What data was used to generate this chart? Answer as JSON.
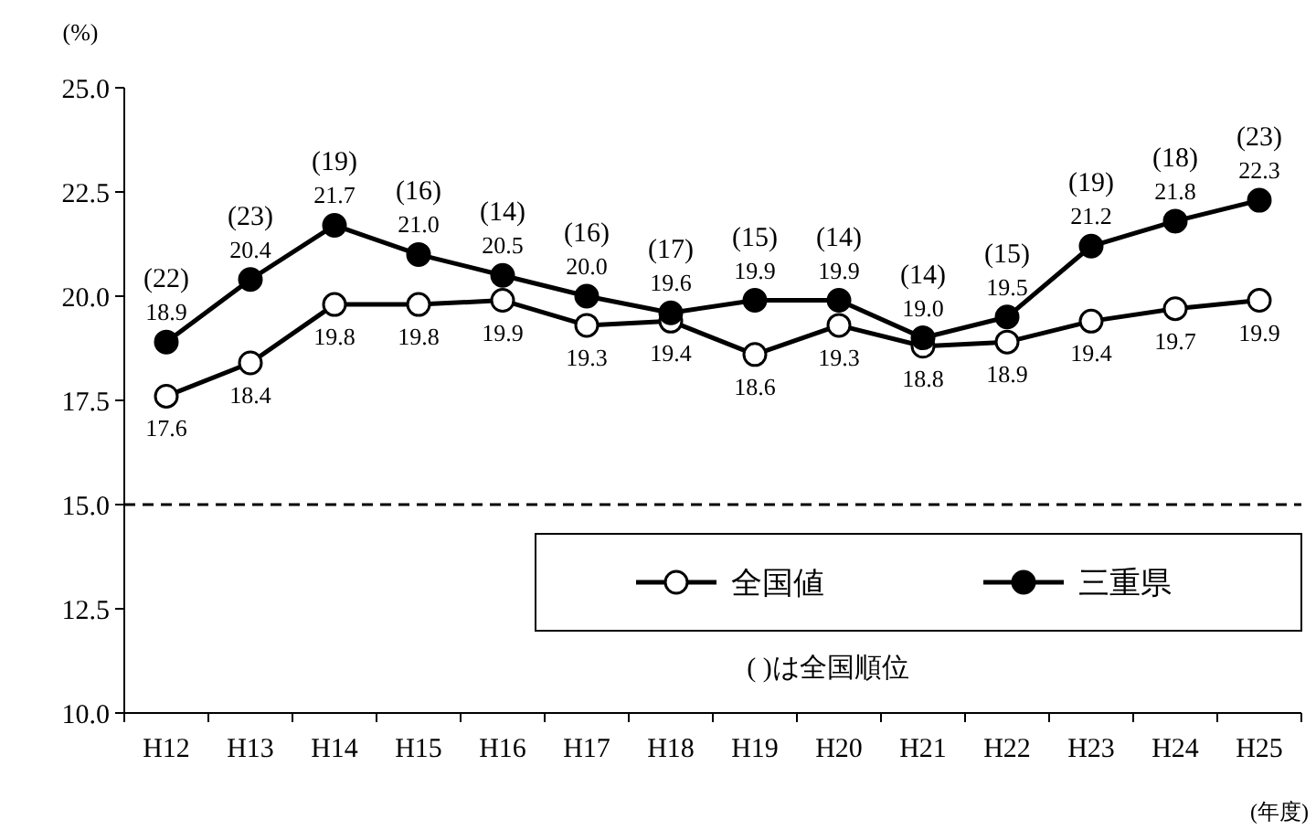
{
  "chart_data": {
    "type": "line",
    "ylabel": "(%)",
    "xlabel": "(年度)",
    "categories": [
      "H12",
      "H13",
      "H14",
      "H15",
      "H16",
      "H17",
      "H18",
      "H19",
      "H20",
      "H21",
      "H22",
      "H23",
      "H24",
      "H25"
    ],
    "series": [
      {
        "name": "全国値",
        "color": "#000000",
        "colors": [
          "#ffffff",
          "#ffffff",
          "#ffffff",
          "#ffffff",
          "#ffffff",
          "#ffffff",
          "#ffffff",
          "#ffffff",
          "#ffffff",
          "#ffffff",
          "#ffffff",
          "#ffffff",
          "#ffffff",
          "#ffffff"
        ],
        "values": [
          17.6,
          18.4,
          19.8,
          19.8,
          19.9,
          19.3,
          19.4,
          18.6,
          19.3,
          18.8,
          18.9,
          19.4,
          19.7,
          19.9
        ],
        "value_labels": [
          "17.6",
          "18.4",
          "19.8",
          "19.8",
          "19.9",
          "19.3",
          "19.4",
          "18.6",
          "19.3",
          "18.8",
          "18.9",
          "19.4",
          "19.7",
          "19.9"
        ]
      },
      {
        "name": "三重県",
        "color": "#000000",
        "values": [
          18.9,
          20.4,
          21.7,
          21.0,
          20.5,
          20.0,
          19.6,
          19.9,
          19.9,
          19.0,
          19.5,
          21.2,
          21.8,
          22.3
        ],
        "value_labels": [
          "18.9",
          "20.4",
          "21.7",
          "21.0",
          "20.5",
          "20.0",
          "19.6",
          "19.9",
          "19.9",
          "19.0",
          "19.5",
          "21.2",
          "21.8",
          "22.3"
        ]
      }
    ],
    "ylim": [
      10,
      25
    ],
    "yticks": [
      {
        "value": 10,
        "label": "10.0"
      },
      {
        "value": 12.5,
        "label": "12.5"
      },
      {
        "value": 15,
        "label": "15.0"
      },
      {
        "value": 17.5,
        "label": "17.5"
      },
      {
        "value": 20,
        "label": "20.0"
      },
      {
        "value": 22.5,
        "label": "22.5"
      },
      {
        "value": 25,
        "label": "25.0"
      }
    ],
    "ref_lines": [
      {
        "axis": "y",
        "value": 15,
        "line_style": "dashed",
        "color": "#000000"
      }
    ],
    "annotations": [
      {
        "text": "(22)",
        "x": "H12",
        "y": 18.9
      },
      {
        "text": "(23)",
        "x": "H13",
        "y": 20.4
      },
      {
        "text": "(19)",
        "x": "H14",
        "y": 21.7
      },
      {
        "text": "(16)",
        "x": "H15",
        "y": 21.0
      },
      {
        "text": "(14)",
        "x": "H16",
        "y": 20.5
      },
      {
        "text": "(16)",
        "x": "H17",
        "y": 20.0
      },
      {
        "text": "(17)",
        "x": "H18",
        "y": 19.6
      },
      {
        "text": "(15)",
        "x": "H19",
        "y": 19.9
      },
      {
        "text": "(14)",
        "x": "H20",
        "y": 19.9
      },
      {
        "text": "(14)",
        "x": "H21",
        "y": 19.0
      },
      {
        "text": "(15)",
        "x": "H22",
        "y": 19.5
      },
      {
        "text": "(19)",
        "x": "H23",
        "y": 21.2
      },
      {
        "text": "(18)",
        "x": "H24",
        "y": 21.8
      },
      {
        "text": "(23)",
        "x": "H25",
        "y": 22.3
      },
      "( )は全国順位"
    ],
    "grid": false,
    "legend": "bottom right",
    "marker": "circle",
    "line_style": "solid"
  }
}
